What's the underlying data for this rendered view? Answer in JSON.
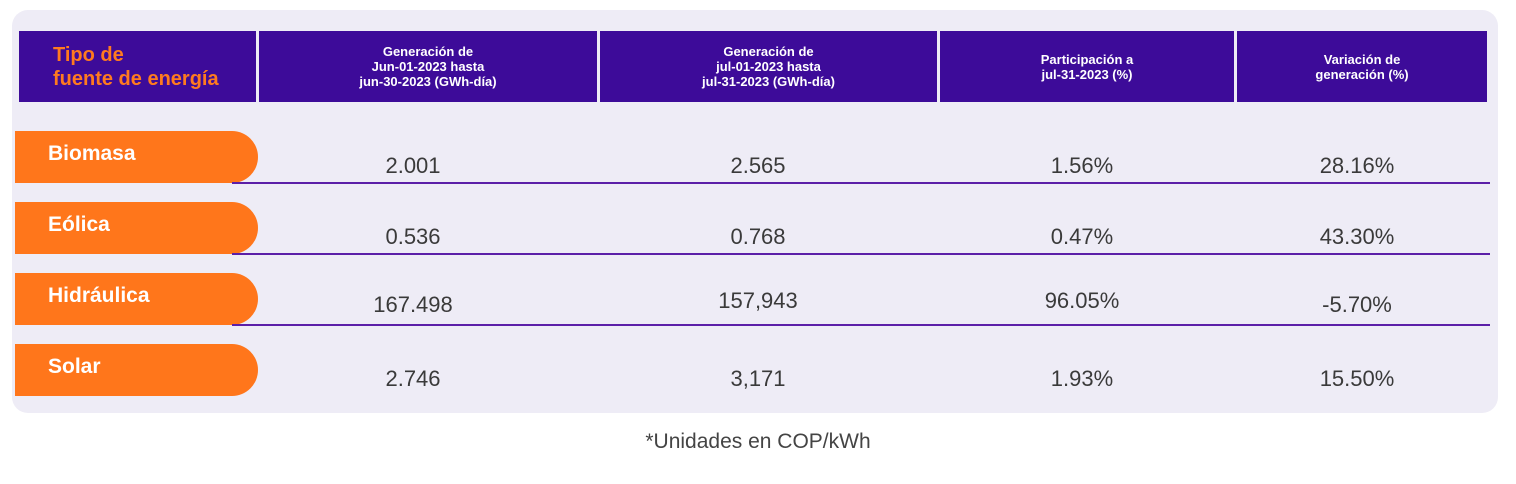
{
  "colors": {
    "header_bg": "#3d0b99",
    "header_text": "#ffffff",
    "first_header_text": "#ff7a1f",
    "pill_bg": "#ff761b",
    "rule": "#5b1fa8",
    "card_bg": "#eeecf6"
  },
  "chart_data": {
    "type": "table",
    "columns": [
      "Tipo de\nfuente de energía",
      "Generación de\nJun-01-2023 hasta\njun-30-2023 (GWh-día)",
      "Generación de\njul-01-2023 hasta\njul-31-2023 (GWh-día)",
      "Participación a\njul-31-2023 (%)",
      "Variación de\ngeneración (%)"
    ],
    "rows": [
      {
        "label": "Biomasa",
        "values": [
          "2.001",
          "2.565",
          "1.56%",
          "28.16%"
        ]
      },
      {
        "label": "Eólica",
        "values": [
          "0.536",
          "0.768",
          "0.47%",
          "43.30%"
        ]
      },
      {
        "label": "Hidráulica",
        "values": [
          "167.498",
          "157,943",
          "96.05%",
          "-5.70%"
        ]
      },
      {
        "label": "Solar",
        "values": [
          "2.746",
          "3,171",
          "1.93%",
          "15.50%"
        ]
      }
    ],
    "footnote": "*Unidades en COP/kWh"
  }
}
